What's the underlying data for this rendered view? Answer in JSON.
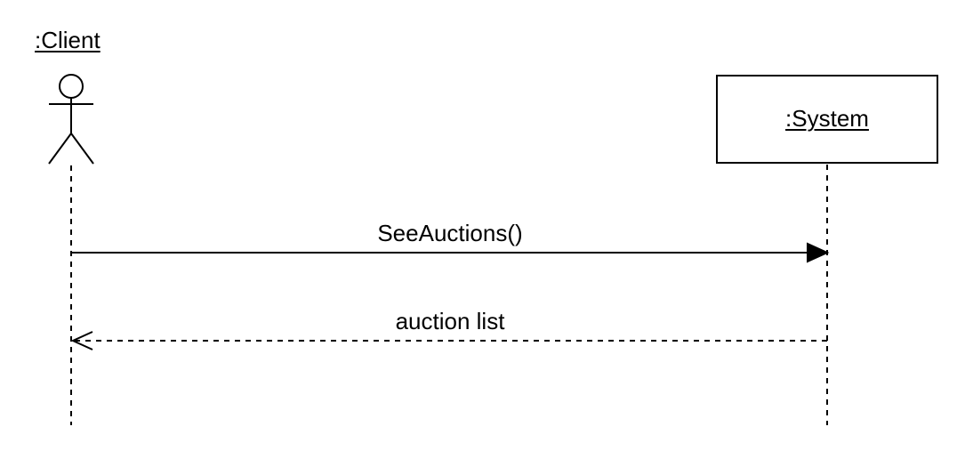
{
  "diagram": {
    "type": "sequence",
    "participants": [
      {
        "name": ":Client",
        "kind": "actor"
      },
      {
        "name": ":System",
        "kind": "object"
      }
    ],
    "messages": [
      {
        "label": "SeeAuctions()",
        "from": ":Client",
        "to": ":System",
        "style": "synchronous"
      },
      {
        "label": "auction list",
        "from": ":System",
        "to": ":Client",
        "style": "return"
      }
    ]
  },
  "colors": {
    "stroke": "#000000",
    "background": "#ffffff"
  }
}
